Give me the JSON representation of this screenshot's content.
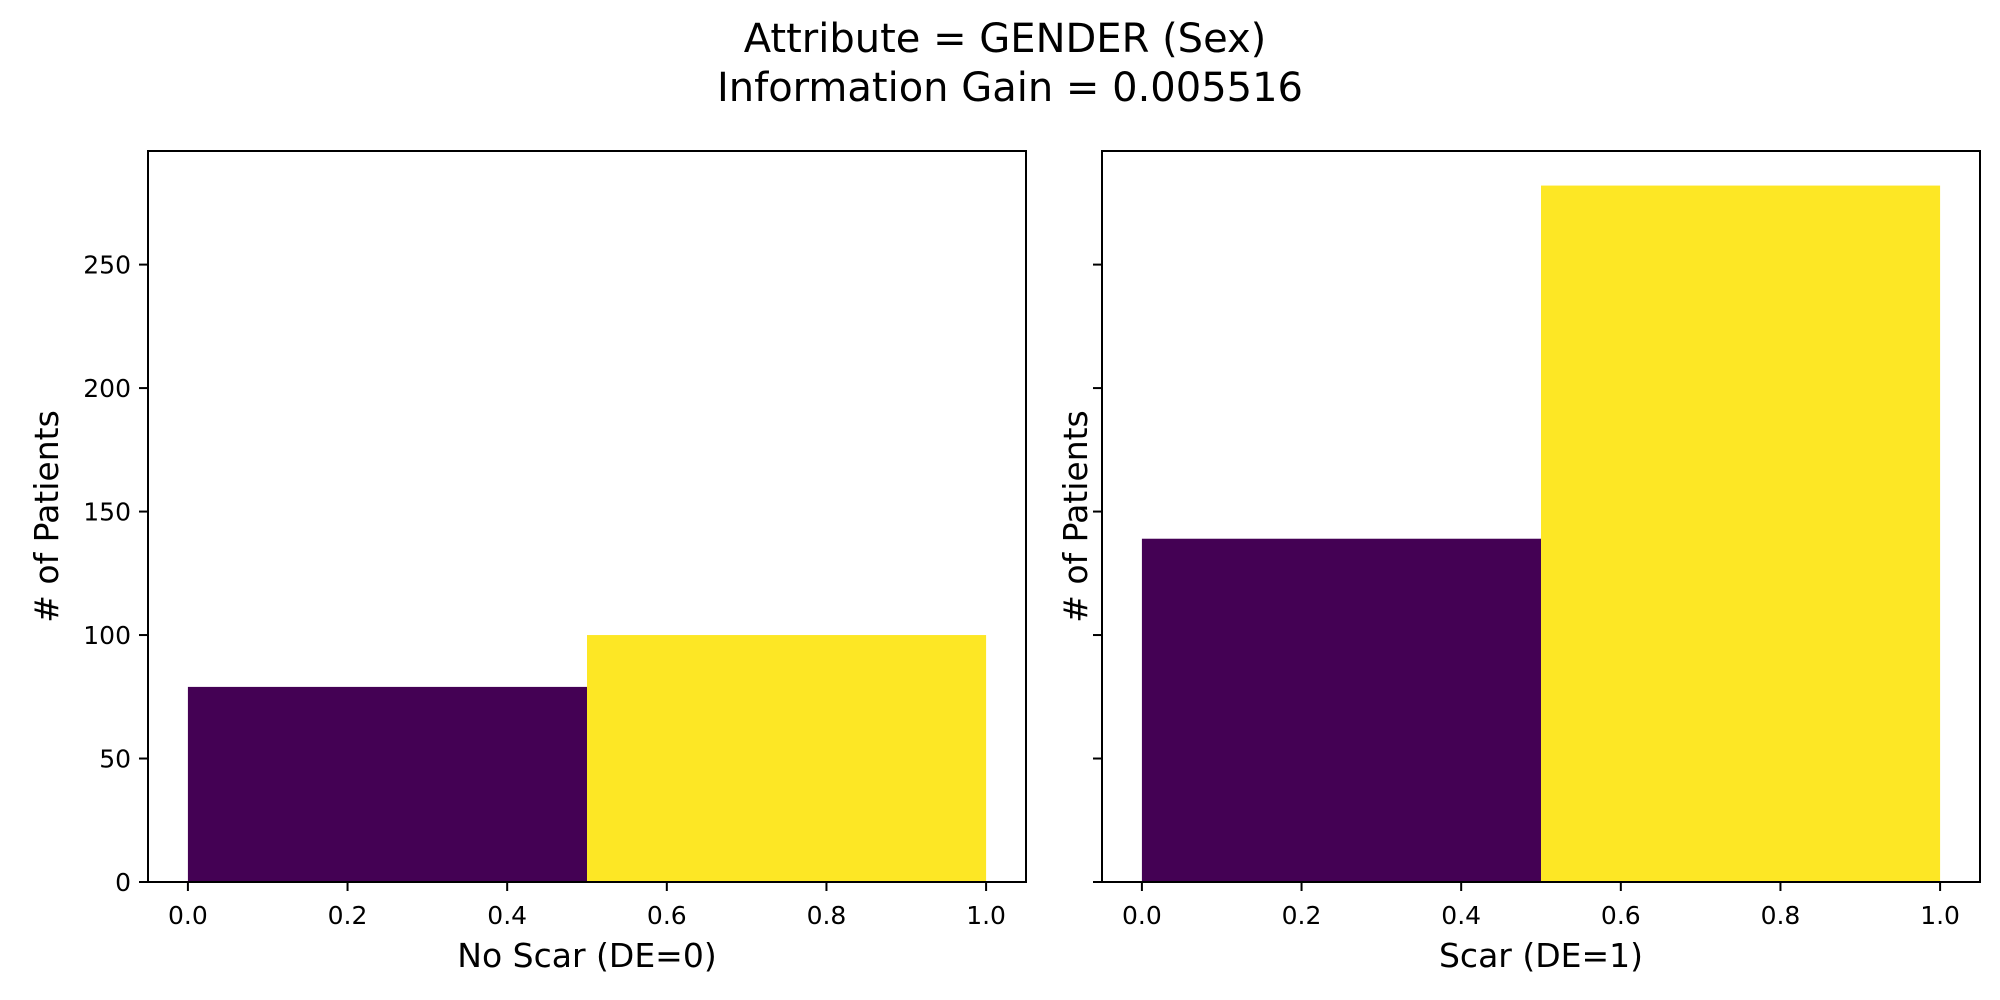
{
  "figure": {
    "title_line1": "Attribute = GENDER (Sex)",
    "title_line2": "Information Gain = 0.005516"
  },
  "chart_data": [
    {
      "type": "bar",
      "xlabel": "No Scar (DE=0)",
      "ylabel": "# of Patients",
      "xlim": [
        -0.05,
        1.05
      ],
      "ylim": [
        0,
        296
      ],
      "xticks": [
        0.0,
        0.2,
        0.4,
        0.6,
        0.8,
        1.0
      ],
      "xtick_labels": [
        "0.0",
        "0.2",
        "0.4",
        "0.6",
        "0.8",
        "1.0"
      ],
      "yticks": [
        0,
        50,
        100,
        150,
        200,
        250
      ],
      "ytick_labels": [
        "0",
        "50",
        "100",
        "150",
        "200",
        "250"
      ],
      "show_ytick_labels": true,
      "grid": false,
      "bars": [
        {
          "x0": 0.0,
          "x1": 0.5,
          "value": 79,
          "color": "#440154"
        },
        {
          "x0": 0.5,
          "x1": 1.0,
          "value": 100,
          "color": "#fde725"
        }
      ]
    },
    {
      "type": "bar",
      "xlabel": "Scar (DE=1)",
      "ylabel": "# of Patients",
      "xlim": [
        -0.05,
        1.05
      ],
      "ylim": [
        0,
        296
      ],
      "xticks": [
        0.0,
        0.2,
        0.4,
        0.6,
        0.8,
        1.0
      ],
      "xtick_labels": [
        "0.0",
        "0.2",
        "0.4",
        "0.6",
        "0.8",
        "1.0"
      ],
      "yticks": [
        0,
        50,
        100,
        150,
        200,
        250
      ],
      "ytick_labels": [
        "0",
        "50",
        "100",
        "150",
        "200",
        "250"
      ],
      "show_ytick_labels": false,
      "grid": false,
      "bars": [
        {
          "x0": 0.0,
          "x1": 0.5,
          "value": 139,
          "color": "#440154"
        },
        {
          "x0": 0.5,
          "x1": 1.0,
          "value": 282,
          "color": "#fde725"
        }
      ]
    }
  ]
}
